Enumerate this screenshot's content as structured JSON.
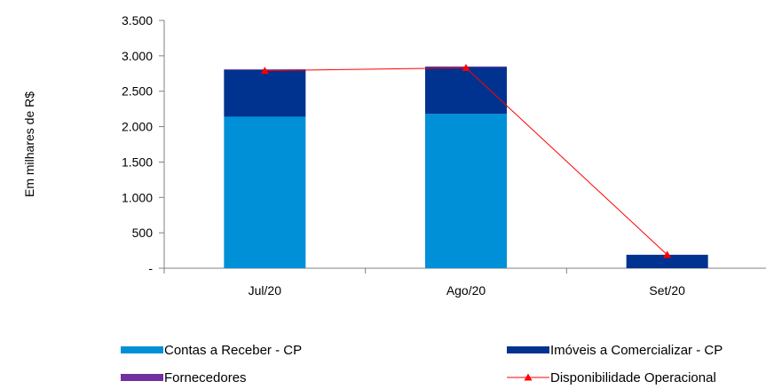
{
  "chart_data": {
    "type": "bar",
    "stacked": true,
    "ylabel": "Em milhares de R$",
    "categories": [
      "Jul/20",
      "Ago/20",
      "Set/20"
    ],
    "y_ticks": [
      0,
      500,
      1000,
      1500,
      2000,
      2500,
      3000,
      3500
    ],
    "y_tick_labels": [
      "-",
      "500",
      "1.000",
      "1.500",
      "2.000",
      "2.500",
      "3.000",
      "3.500"
    ],
    "ylim": [
      0,
      3500
    ],
    "grid": false,
    "series": [
      {
        "name": "Contas a Receber  - CP",
        "kind": "bar",
        "color": "#0090D8",
        "values": [
          2140,
          2180,
          0
        ]
      },
      {
        "name": "Imóveis a Comercializar - CP",
        "kind": "bar",
        "color": "#00338F",
        "values": [
          660,
          660,
          190
        ]
      },
      {
        "name": "Fornecedores",
        "kind": "bar",
        "color": "#7030A0",
        "values": [
          10,
          10,
          0
        ]
      },
      {
        "name": "Disponibilidade Operacional",
        "kind": "line",
        "color": "#FF0000",
        "marker": "triangle",
        "values": [
          2790,
          2830,
          190
        ]
      }
    ],
    "legend_position": "bottom"
  }
}
